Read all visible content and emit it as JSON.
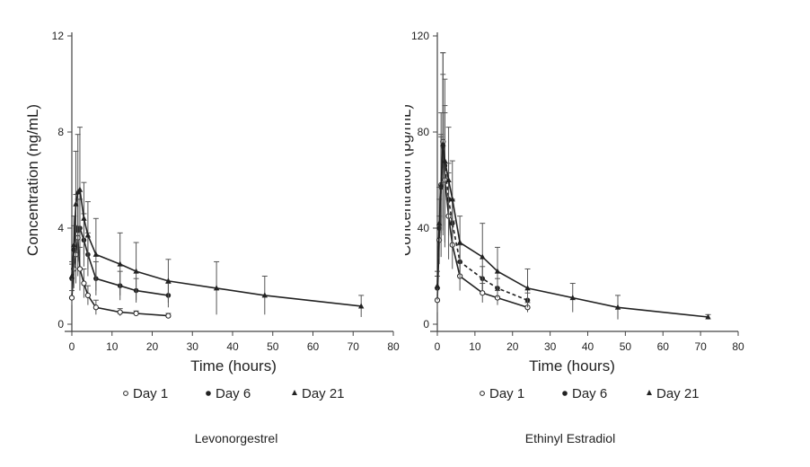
{
  "chart_data": [
    {
      "type": "line",
      "caption": "Levonorgestrel",
      "xlabel": "Time (hours)",
      "ylabel": "Concentration (ng/mL)",
      "xlim": [
        0,
        80
      ],
      "ylim": [
        0,
        12
      ],
      "xticks": [
        0,
        10,
        20,
        30,
        40,
        50,
        60,
        70,
        80
      ],
      "yticks": [
        0,
        4,
        8,
        12
      ],
      "grid": false,
      "legend_position": "bottom",
      "legend": [
        "Day 1",
        "Day 6",
        "Day 21"
      ],
      "series": [
        {
          "name": "Day 1",
          "marker": "open-circle",
          "line": "solid",
          "x": [
            0,
            0.5,
            1,
            1.5,
            2,
            3,
            4,
            6,
            12,
            16,
            24
          ],
          "y": [
            1.1,
            2.3,
            2.9,
            3.6,
            2.3,
            1.7,
            1.2,
            0.7,
            0.5,
            0.45,
            0.35
          ],
          "sd": [
            0.3,
            0.8,
            1.2,
            1.6,
            0.9,
            0.6,
            0.4,
            0.3,
            0.15,
            0.1,
            0.1
          ]
        },
        {
          "name": "Day 6",
          "marker": "filled-circle",
          "line": "solid",
          "x": [
            0,
            0.5,
            1,
            1.5,
            2,
            3,
            4,
            6,
            12,
            16,
            24
          ],
          "y": [
            1.9,
            3.1,
            4.0,
            3.9,
            4.0,
            3.5,
            2.9,
            1.9,
            1.6,
            1.4,
            1.2
          ],
          "sd": [
            0.6,
            1.0,
            1.4,
            1.3,
            1.2,
            1.1,
            0.9,
            0.7,
            0.6,
            0.5,
            0.5
          ]
        },
        {
          "name": "Day 21",
          "marker": "filled-triangle",
          "line": "solid",
          "x": [
            0,
            0.5,
            1,
            1.5,
            2,
            3,
            4,
            6,
            12,
            16,
            24,
            36,
            48,
            72
          ],
          "y": [
            2.0,
            3.3,
            5.0,
            5.5,
            5.6,
            4.4,
            3.7,
            2.9,
            2.5,
            2.2,
            1.8,
            1.5,
            1.2,
            0.75
          ],
          "sd": [
            0.6,
            1.2,
            2.2,
            2.4,
            2.6,
            1.5,
            1.4,
            1.5,
            1.3,
            1.2,
            0.9,
            1.1,
            0.8,
            0.45
          ]
        }
      ]
    },
    {
      "type": "line",
      "caption": "Ethinyl Estradiol",
      "xlabel": "Time (hours)",
      "ylabel": "Concentration (pg/mL)",
      "xlim": [
        0,
        80
      ],
      "ylim": [
        0,
        120
      ],
      "xticks": [
        0,
        10,
        20,
        30,
        40,
        50,
        60,
        70,
        80
      ],
      "yticks": [
        0,
        40,
        80,
        120
      ],
      "grid": false,
      "legend_position": "bottom",
      "legend": [
        "Day 1",
        "Day 6",
        "Day 21"
      ],
      "series": [
        {
          "name": "Day 1",
          "marker": "open-circle",
          "line": "solid",
          "x": [
            0,
            0.5,
            1,
            1.5,
            2,
            3,
            4,
            6,
            12,
            16,
            24
          ],
          "y": [
            10,
            35,
            58,
            76,
            60,
            45,
            33,
            20,
            13,
            11,
            7
          ],
          "sd": [
            5,
            10,
            20,
            37,
            28,
            18,
            10,
            6,
            4,
            3,
            2
          ]
        },
        {
          "name": "Day 6",
          "marker": "filled-circle",
          "line": "dashed",
          "x": [
            0,
            0.5,
            1,
            1.5,
            2,
            3,
            4,
            6,
            12,
            16,
            24
          ],
          "y": [
            15,
            40,
            57,
            74,
            66,
            52,
            42,
            26,
            19,
            15,
            10
          ],
          "sd": [
            5,
            12,
            22,
            30,
            25,
            15,
            10,
            7,
            5,
            4,
            3
          ]
        },
        {
          "name": "Day 21",
          "marker": "filled-triangle",
          "line": "solid",
          "x": [
            0,
            0.5,
            1,
            1.5,
            2,
            3,
            4,
            6,
            12,
            16,
            24,
            36,
            48,
            72
          ],
          "y": [
            16,
            42,
            58,
            75,
            68,
            60,
            52,
            34,
            28,
            22,
            15,
            11,
            7,
            3
          ],
          "sd": [
            6,
            15,
            30,
            38,
            34,
            22,
            16,
            11,
            14,
            10,
            8,
            6,
            5,
            1
          ]
        }
      ]
    }
  ]
}
